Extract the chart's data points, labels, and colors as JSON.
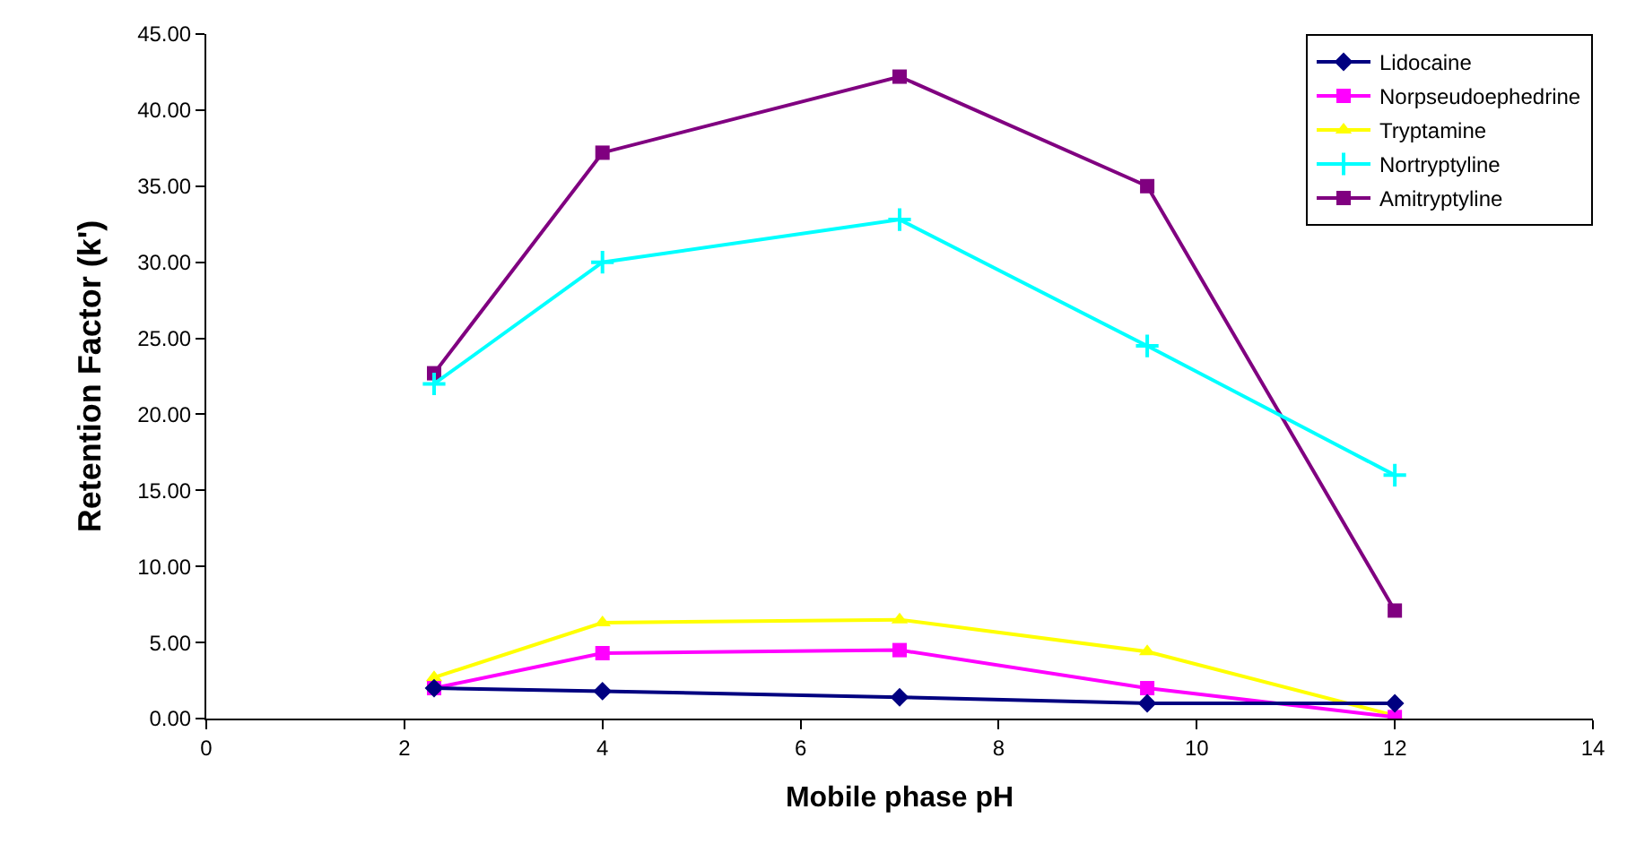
{
  "chart_data": {
    "type": "line",
    "xlabel": "Mobile phase pH",
    "ylabel": "Retention Factor (k')",
    "x": [
      2.3,
      4,
      7,
      9.5,
      12
    ],
    "series": [
      {
        "name": "Lidocaine",
        "color": "#000080",
        "marker": "diamond",
        "values": [
          2.0,
          1.8,
          1.4,
          1.0,
          1.0
        ]
      },
      {
        "name": "Norpseudoephedrine",
        "color": "#ff00ff",
        "marker": "square",
        "values": [
          2.0,
          4.3,
          4.5,
          2.0,
          0.1
        ]
      },
      {
        "name": "Tryptamine",
        "color": "#ffff00",
        "marker": "triangle",
        "values": [
          2.7,
          6.3,
          6.5,
          4.4,
          0.2
        ]
      },
      {
        "name": "Nortryptyline",
        "color": "#00ffff",
        "marker": "cross",
        "values": [
          22.0,
          30.0,
          32.8,
          24.5,
          16.0
        ]
      },
      {
        "name": "Amitryptyline",
        "color": "#800080",
        "marker": "square",
        "values": [
          22.7,
          37.2,
          42.2,
          35.0,
          7.1
        ]
      }
    ],
    "xlim": [
      0,
      14
    ],
    "xticks": [
      0,
      2,
      4,
      6,
      8,
      10,
      12,
      14
    ],
    "ylim": [
      0,
      45
    ],
    "yticks": [
      {
        "value": 0,
        "label": "0.00"
      },
      {
        "value": 5,
        "label": "5.00"
      },
      {
        "value": 10,
        "label": "10.00"
      },
      {
        "value": 15,
        "label": "15.00"
      },
      {
        "value": 20,
        "label": "20.00"
      },
      {
        "value": 25,
        "label": "25.00"
      },
      {
        "value": 30,
        "label": "30.00"
      },
      {
        "value": 35,
        "label": "35.00"
      },
      {
        "value": 40,
        "label": "40.00"
      },
      {
        "value": 45,
        "label": "45.00"
      }
    ],
    "legend": "top right",
    "line_style": "solid"
  }
}
